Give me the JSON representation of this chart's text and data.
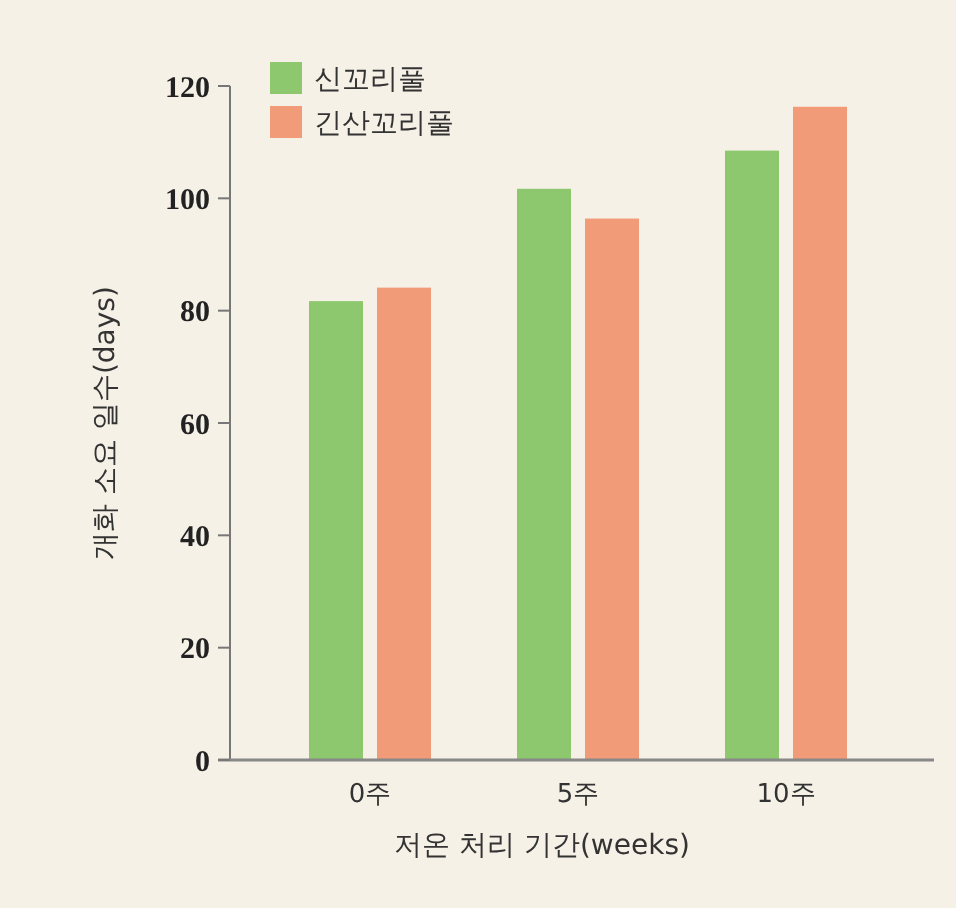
{
  "chart_data": {
    "type": "bar",
    "xlabel": "저온 처리 기간(weeks)",
    "ylabel": "개화 소요 일수(days)",
    "categories": [
      "0주",
      "5주",
      "10주"
    ],
    "series": [
      {
        "name": "신꼬리풀",
        "color": "#8dc76e",
        "values": [
          81.7,
          101.7,
          108.5
        ]
      },
      {
        "name": "긴산꼬리풀",
        "color": "#f29b78",
        "values": [
          84.1,
          96.4,
          116.3
        ]
      }
    ],
    "ylim": [
      0,
      120
    ],
    "yticks": [
      0,
      20,
      40,
      60,
      80,
      100,
      120
    ],
    "legend": "top left",
    "grid": false
  }
}
